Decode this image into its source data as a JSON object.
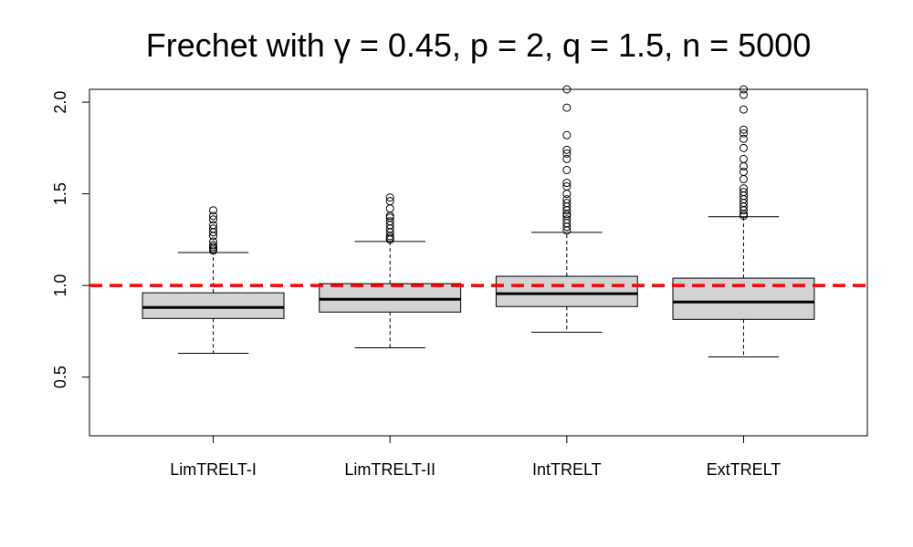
{
  "chart_data": {
    "type": "boxplot",
    "title": "Frechet with γ = 0.45, p = 2, q = 1.5, n = 5000",
    "xlabel": "",
    "ylabel": "",
    "categories": [
      "LimTRELT-I",
      "LimTRELT-II",
      "IntTRELT",
      "ExtTRELT"
    ],
    "ylim": [
      0.18,
      2.07
    ],
    "y_ticks": [
      "0.5",
      "1.0",
      "1.5",
      "2.0"
    ],
    "reference_line": {
      "y": 1.0,
      "style": "dashed",
      "color": "#ff0000"
    },
    "box_color": "#d3d3d3",
    "boxes": [
      {
        "name": "LimTRELT-I",
        "lower_whisker": 0.63,
        "q1": 0.82,
        "median": 0.88,
        "q3": 0.96,
        "upper_whisker": 1.18,
        "outliers": [
          1.19,
          1.2,
          1.21,
          1.22,
          1.24,
          1.27,
          1.29,
          1.31,
          1.33,
          1.36,
          1.38,
          1.41
        ]
      },
      {
        "name": "LimTRELT-II",
        "lower_whisker": 0.66,
        "q1": 0.855,
        "median": 0.925,
        "q3": 1.01,
        "upper_whisker": 1.24,
        "outliers": [
          1.25,
          1.26,
          1.27,
          1.29,
          1.31,
          1.33,
          1.35,
          1.37,
          1.38,
          1.42,
          1.46,
          1.48
        ]
      },
      {
        "name": "IntTRELT",
        "lower_whisker": 0.745,
        "q1": 0.885,
        "median": 0.955,
        "q3": 1.05,
        "upper_whisker": 1.29,
        "outliers": [
          1.3,
          1.32,
          1.34,
          1.36,
          1.38,
          1.39,
          1.41,
          1.43,
          1.45,
          1.47,
          1.5,
          1.54,
          1.56,
          1.63,
          1.69,
          1.72,
          1.74,
          1.82,
          1.97,
          2.07
        ]
      },
      {
        "name": "ExtTRELT",
        "lower_whisker": 0.61,
        "q1": 0.815,
        "median": 0.91,
        "q3": 1.04,
        "upper_whisker": 1.375,
        "outliers": [
          1.38,
          1.39,
          1.41,
          1.43,
          1.45,
          1.47,
          1.49,
          1.51,
          1.53,
          1.58,
          1.62,
          1.65,
          1.69,
          1.75,
          1.8,
          1.83,
          1.85,
          1.96,
          2.04,
          2.07
        ]
      }
    ]
  }
}
